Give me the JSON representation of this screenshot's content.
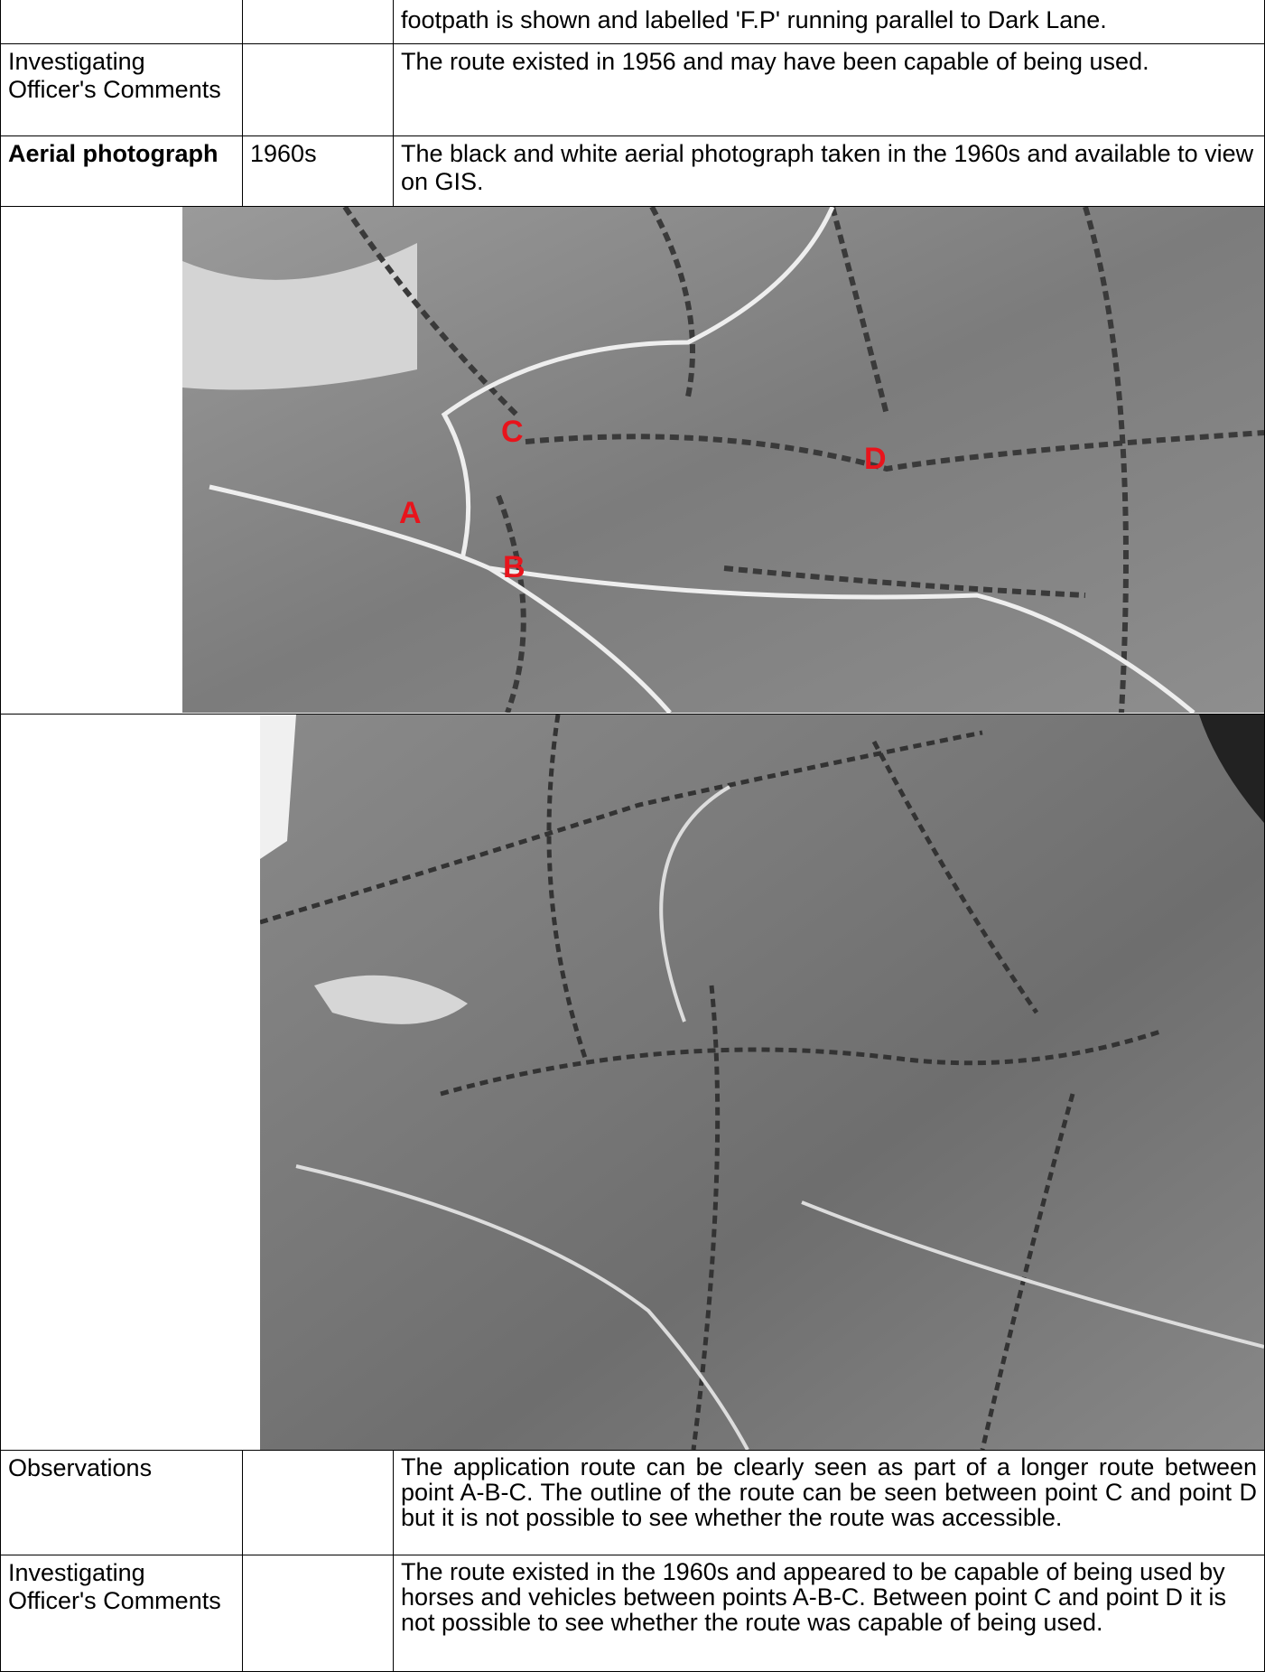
{
  "table": {
    "rows": [
      [
        "",
        "",
        "footpath is shown and labelled 'F.P' running parallel to Dark Lane."
      ],
      [
        "Investigating Officer's Comments",
        "",
        "The route existed in 1956 and may have been capable of being used."
      ],
      [
        "Aerial photograph",
        "1960s",
        "The black and white aerial photograph taken in the 1960s and available to view on GIS."
      ],
      [
        "Observations",
        "",
        "The application route can be clearly seen as part of a longer route between point A-B-C. The outline of the route can be seen between point C and point D but it is not possible to see whether the route was accessible."
      ],
      [
        "Investigating Officer's Comments",
        "",
        "The route existed in the 1960s and appeared to be capable of being used by horses and vehicles between points A-B-C. Between point C and point D it is not possible to see whether the route was capable of being used."
      ]
    ]
  },
  "photo": {
    "labels": [
      "A",
      "B",
      "C",
      "D"
    ]
  }
}
